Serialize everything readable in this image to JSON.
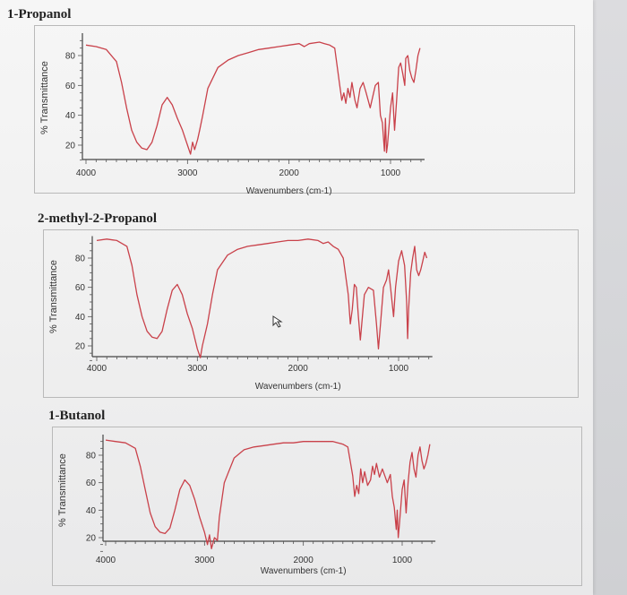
{
  "chart_data": [
    {
      "type": "line",
      "title": "1-Propanol",
      "xlabel": "Wavenumbers (cm-1)",
      "ylabel": "% Transmittance",
      "xlim": [
        4000,
        700
      ],
      "ylim": [
        10,
        95
      ],
      "x_ticks": [
        4000,
        3000,
        2000,
        1000
      ],
      "y_ticks": [
        20,
        40,
        60,
        80
      ],
      "grid": false,
      "series": [
        {
          "color": "#c9414a",
          "points": [
            [
              4000,
              87
            ],
            [
              3900,
              86
            ],
            [
              3800,
              84
            ],
            [
              3700,
              76
            ],
            [
              3650,
              62
            ],
            [
              3600,
              45
            ],
            [
              3550,
              30
            ],
            [
              3500,
              22
            ],
            [
              3450,
              18
            ],
            [
              3400,
              17
            ],
            [
              3350,
              22
            ],
            [
              3300,
              33
            ],
            [
              3250,
              47
            ],
            [
              3200,
              52
            ],
            [
              3150,
              47
            ],
            [
              3100,
              38
            ],
            [
              3050,
              30
            ],
            [
              3000,
              20
            ],
            [
              2970,
              14
            ],
            [
              2950,
              22
            ],
            [
              2930,
              17
            ],
            [
              2900,
              24
            ],
            [
              2880,
              30
            ],
            [
              2850,
              40
            ],
            [
              2800,
              58
            ],
            [
              2700,
              72
            ],
            [
              2600,
              77
            ],
            [
              2500,
              80
            ],
            [
              2400,
              82
            ],
            [
              2300,
              84
            ],
            [
              2200,
              85
            ],
            [
              2100,
              86
            ],
            [
              2000,
              87
            ],
            [
              1900,
              88
            ],
            [
              1850,
              86
            ],
            [
              1800,
              88
            ],
            [
              1700,
              89
            ],
            [
              1650,
              88
            ],
            [
              1600,
              87
            ],
            [
              1550,
              85
            ],
            [
              1500,
              60
            ],
            [
              1480,
              50
            ],
            [
              1460,
              55
            ],
            [
              1440,
              48
            ],
            [
              1420,
              58
            ],
            [
              1400,
              52
            ],
            [
              1380,
              62
            ],
            [
              1350,
              50
            ],
            [
              1330,
              45
            ],
            [
              1300,
              58
            ],
            [
              1270,
              62
            ],
            [
              1240,
              55
            ],
            [
              1200,
              45
            ],
            [
              1150,
              60
            ],
            [
              1120,
              62
            ],
            [
              1100,
              40
            ],
            [
              1080,
              35
            ],
            [
              1060,
              16
            ],
            [
              1050,
              38
            ],
            [
              1040,
              15
            ],
            [
              1030,
              20
            ],
            [
              1000,
              45
            ],
            [
              980,
              55
            ],
            [
              960,
              30
            ],
            [
              940,
              50
            ],
            [
              920,
              72
            ],
            [
              900,
              75
            ],
            [
              880,
              68
            ],
            [
              860,
              60
            ],
            [
              850,
              78
            ],
            [
              830,
              80
            ],
            [
              810,
              70
            ],
            [
              790,
              65
            ],
            [
              770,
              62
            ],
            [
              750,
              70
            ],
            [
              730,
              80
            ],
            [
              710,
              85
            ]
          ]
        }
      ]
    },
    {
      "type": "line",
      "title": "2-methyl-2-Propanol",
      "xlabel": "Wavenumbers (cm-1)",
      "ylabel": "% Transmittance",
      "xlim": [
        4000,
        700
      ],
      "ylim": [
        10,
        95
      ],
      "x_ticks": [
        4000,
        3000,
        2000,
        1000
      ],
      "y_ticks": [
        20,
        40,
        60,
        80
      ],
      "grid": false,
      "series": [
        {
          "color": "#c9414a",
          "points": [
            [
              4000,
              92
            ],
            [
              3900,
              93
            ],
            [
              3800,
              92
            ],
            [
              3700,
              88
            ],
            [
              3650,
              75
            ],
            [
              3600,
              55
            ],
            [
              3550,
              40
            ],
            [
              3500,
              30
            ],
            [
              3450,
              26
            ],
            [
              3400,
              25
            ],
            [
              3350,
              30
            ],
            [
              3300,
              45
            ],
            [
              3250,
              58
            ],
            [
              3200,
              62
            ],
            [
              3150,
              55
            ],
            [
              3100,
              42
            ],
            [
              3050,
              32
            ],
            [
              3000,
              18
            ],
            [
              2970,
              12
            ],
            [
              2950,
              20
            ],
            [
              2930,
              26
            ],
            [
              2900,
              35
            ],
            [
              2850,
              55
            ],
            [
              2800,
              72
            ],
            [
              2700,
              82
            ],
            [
              2600,
              86
            ],
            [
              2500,
              88
            ],
            [
              2400,
              89
            ],
            [
              2300,
              90
            ],
            [
              2200,
              91
            ],
            [
              2100,
              92
            ],
            [
              2000,
              92
            ],
            [
              1900,
              93
            ],
            [
              1800,
              92
            ],
            [
              1750,
              90
            ],
            [
              1700,
              91
            ],
            [
              1650,
              88
            ],
            [
              1600,
              86
            ],
            [
              1550,
              80
            ],
            [
              1500,
              55
            ],
            [
              1480,
              35
            ],
            [
              1460,
              45
            ],
            [
              1440,
              62
            ],
            [
              1420,
              60
            ],
            [
              1400,
              40
            ],
            [
              1380,
              24
            ],
            [
              1360,
              40
            ],
            [
              1340,
              55
            ],
            [
              1300,
              60
            ],
            [
              1250,
              58
            ],
            [
              1220,
              35
            ],
            [
              1200,
              18
            ],
            [
              1180,
              35
            ],
            [
              1150,
              60
            ],
            [
              1120,
              65
            ],
            [
              1100,
              72
            ],
            [
              1080,
              60
            ],
            [
              1050,
              40
            ],
            [
              1030,
              60
            ],
            [
              1000,
              78
            ],
            [
              970,
              85
            ],
            [
              940,
              75
            ],
            [
              920,
              50
            ],
            [
              910,
              25
            ],
            [
              900,
              45
            ],
            [
              880,
              70
            ],
            [
              860,
              80
            ],
            [
              840,
              88
            ],
            [
              820,
              72
            ],
            [
              800,
              68
            ],
            [
              780,
              72
            ],
            [
              760,
              78
            ],
            [
              740,
              84
            ],
            [
              720,
              80
            ]
          ]
        }
      ]
    },
    {
      "type": "line",
      "title": "1-Butanol",
      "xlabel": "Wavenumbers (cm-1)",
      "ylabel": "% Transmittance",
      "xlim": [
        4000,
        700
      ],
      "ylim": [
        10,
        95
      ],
      "x_ticks": [
        4000,
        3000,
        2000,
        1000
      ],
      "y_ticks": [
        20,
        40,
        60,
        80
      ],
      "grid": false,
      "series": [
        {
          "color": "#c9414a",
          "points": [
            [
              4000,
              91
            ],
            [
              3900,
              90
            ],
            [
              3800,
              89
            ],
            [
              3700,
              85
            ],
            [
              3650,
              72
            ],
            [
              3600,
              55
            ],
            [
              3550,
              38
            ],
            [
              3500,
              28
            ],
            [
              3450,
              24
            ],
            [
              3400,
              23
            ],
            [
              3350,
              27
            ],
            [
              3300,
              40
            ],
            [
              3250,
              55
            ],
            [
              3200,
              62
            ],
            [
              3150,
              58
            ],
            [
              3100,
              48
            ],
            [
              3050,
              35
            ],
            [
              3000,
              24
            ],
            [
              2970,
              15
            ],
            [
              2950,
              22
            ],
            [
              2930,
              12
            ],
            [
              2900,
              20
            ],
            [
              2870,
              18
            ],
            [
              2850,
              35
            ],
            [
              2800,
              60
            ],
            [
              2700,
              78
            ],
            [
              2600,
              84
            ],
            [
              2500,
              86
            ],
            [
              2400,
              87
            ],
            [
              2300,
              88
            ],
            [
              2200,
              89
            ],
            [
              2100,
              89
            ],
            [
              2000,
              90
            ],
            [
              1900,
              90
            ],
            [
              1800,
              90
            ],
            [
              1700,
              90
            ],
            [
              1650,
              89
            ],
            [
              1600,
              88
            ],
            [
              1550,
              86
            ],
            [
              1500,
              65
            ],
            [
              1480,
              50
            ],
            [
              1460,
              58
            ],
            [
              1440,
              52
            ],
            [
              1420,
              70
            ],
            [
              1400,
              60
            ],
            [
              1380,
              68
            ],
            [
              1350,
              58
            ],
            [
              1320,
              62
            ],
            [
              1300,
              72
            ],
            [
              1280,
              66
            ],
            [
              1260,
              74
            ],
            [
              1230,
              64
            ],
            [
              1200,
              70
            ],
            [
              1150,
              60
            ],
            [
              1120,
              66
            ],
            [
              1100,
              50
            ],
            [
              1080,
              42
            ],
            [
              1060,
              26
            ],
            [
              1050,
              40
            ],
            [
              1040,
              20
            ],
            [
              1030,
              28
            ],
            [
              1000,
              55
            ],
            [
              980,
              62
            ],
            [
              960,
              38
            ],
            [
              940,
              60
            ],
            [
              920,
              75
            ],
            [
              900,
              82
            ],
            [
              880,
              70
            ],
            [
              860,
              64
            ],
            [
              840,
              80
            ],
            [
              820,
              86
            ],
            [
              800,
              76
            ],
            [
              780,
              70
            ],
            [
              760,
              74
            ],
            [
              740,
              80
            ],
            [
              720,
              88
            ]
          ]
        }
      ]
    }
  ]
}
